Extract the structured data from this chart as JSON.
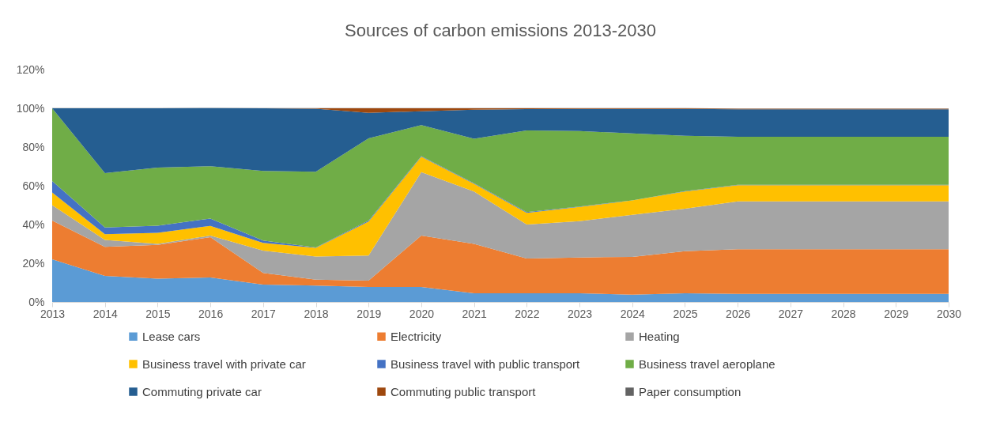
{
  "chart_data": {
    "type": "area",
    "title": "Sources of carbon emissions 2013-2030",
    "stacked": true,
    "legend": "bottom",
    "grid": false,
    "categories": [
      "2013",
      "2014",
      "2015",
      "2016",
      "2017",
      "2018",
      "2019",
      "2020",
      "2021",
      "2022",
      "2023",
      "2024",
      "2025",
      "2026",
      "2027",
      "2028",
      "2029",
      "2030"
    ],
    "ylim": [
      0,
      120
    ],
    "yticks": [
      {
        "value": 0,
        "label": "0%"
      },
      {
        "value": 20,
        "label": "20%"
      },
      {
        "value": 40,
        "label": "40%"
      },
      {
        "value": 60,
        "label": "60%"
      },
      {
        "value": 80,
        "label": "80%"
      },
      {
        "value": 100,
        "label": "100%"
      },
      {
        "value": 120,
        "label": "120%"
      }
    ],
    "series": [
      {
        "name": "Lease cars",
        "color": "#5b9bd5",
        "values": [
          22,
          13.5,
          12,
          12.7,
          9,
          8.5,
          7.8,
          7.8,
          4.5,
          4.5,
          4.5,
          3.8,
          4.5,
          4.2,
          4.2,
          4.2,
          4.2,
          4.2
        ]
      },
      {
        "name": "Electricity",
        "color": "#ed7d31",
        "values": [
          20,
          15,
          17.5,
          20.8,
          6,
          3,
          3.2,
          26.5,
          25.5,
          18,
          18.5,
          19.5,
          21.7,
          23,
          23,
          23,
          23,
          23
        ]
      },
      {
        "name": "Heating",
        "color": "#a5a5a5",
        "values": [
          8,
          3.5,
          0.5,
          0.8,
          11.5,
          12,
          13,
          32.7,
          27,
          17.5,
          18.7,
          21.7,
          22,
          24.7,
          24.7,
          24.7,
          24.7,
          24.7
        ]
      },
      {
        "name": "Business travel with private car",
        "color": "#ffc000",
        "values": [
          6.5,
          3,
          5.7,
          5,
          4,
          4.5,
          17.5,
          8,
          4,
          6,
          7.4,
          7.4,
          8.8,
          8.4,
          8.4,
          8.4,
          8.4,
          8.4
        ]
      },
      {
        "name": "Business travel with public transport",
        "color": "#4472c4",
        "values": [
          6,
          3.5,
          3.7,
          3.8,
          1.2,
          0.2,
          0.5,
          0.3,
          0.3,
          0.4,
          0.2,
          0.1,
          0.2,
          0.2,
          0.2,
          0.2,
          0.2,
          0.2
        ]
      },
      {
        "name": "Business travel aeroplane",
        "color": "#70ad47",
        "values": [
          37.5,
          28,
          30,
          27,
          36,
          39,
          42.5,
          16,
          23,
          42.2,
          39,
          34.5,
          28.6,
          24.8,
          24.8,
          24.8,
          24.8,
          24.8
        ]
      },
      {
        "name": "Commuting private car",
        "color": "#255e91",
        "values": [
          0,
          33.5,
          30.6,
          30,
          32.3,
          32.6,
          13.2,
          7.2,
          15,
          11,
          11.4,
          12.7,
          13.9,
          14.2,
          14.2,
          14.2,
          14.2,
          14.2
        ]
      },
      {
        "name": "Commuting public transport",
        "color": "#9e480e",
        "values": [
          0,
          0,
          0,
          0,
          0,
          0.2,
          2.3,
          1.5,
          0.7,
          0.4,
          0.3,
          0.3,
          0.3,
          0.3,
          0.3,
          0.3,
          0.3,
          0.3
        ]
      },
      {
        "name": "Paper consumption",
        "color": "#636363",
        "values": [
          0.1,
          0.1,
          0.1,
          0.1,
          0.1,
          0.1,
          0.1,
          0.1,
          0.1,
          0.1,
          0.1,
          0.1,
          0.1,
          0.1,
          0.1,
          0.1,
          0.1,
          0.1
        ]
      }
    ]
  }
}
